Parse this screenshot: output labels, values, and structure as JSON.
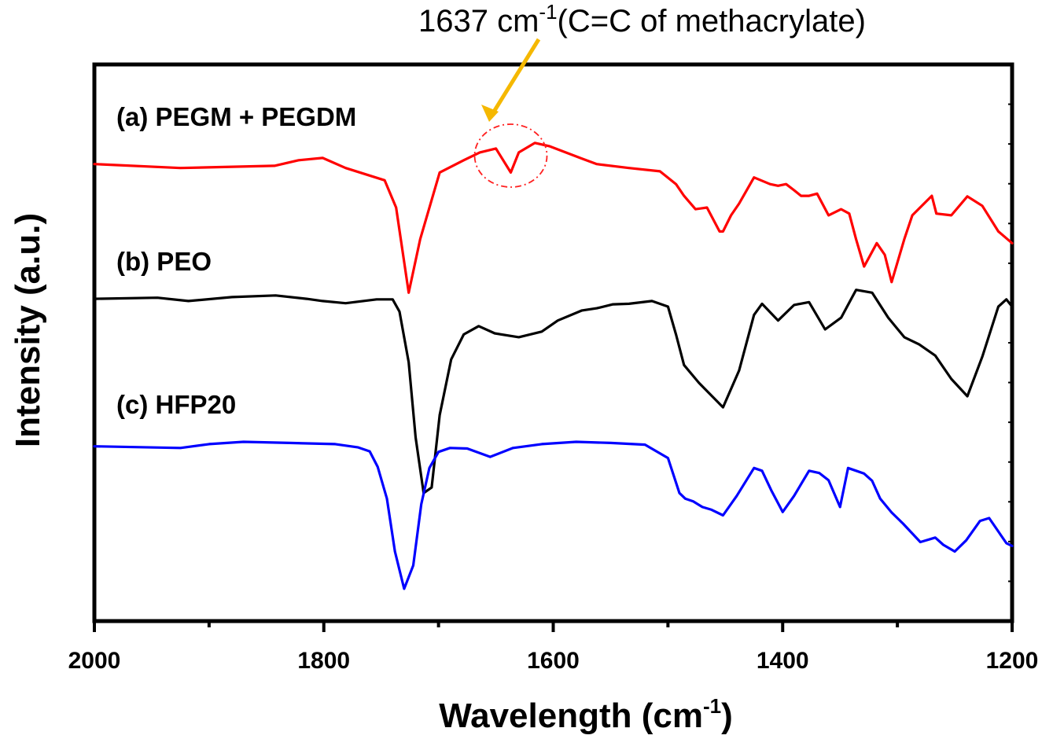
{
  "chart_data": {
    "type": "line",
    "title": "",
    "xlabel": "Wavelength (cm",
    "xlabel_sup": "-1",
    "xlabel_end": ")",
    "ylabel": "Intensity (a.u.)",
    "xlim": [
      2000,
      1200
    ],
    "ylim": [
      0,
      100
    ],
    "x_reversed": true,
    "xticks": [
      2000,
      1800,
      1600,
      1400,
      1200
    ],
    "xtick_labels": [
      "2000",
      "1800",
      "1600",
      "1400",
      "1200"
    ],
    "x_minor_ticks": [
      1900,
      1700,
      1500,
      1300
    ],
    "grid": false,
    "yticks_labeled": false,
    "annotation": {
      "text_main": "1637 cm",
      "text_sup": "-1",
      "text_end": "(C=C of methacrylate)",
      "target_x": 1637,
      "arrow_color": "#f5b800",
      "circle_color": "#ff2020"
    },
    "series": [
      {
        "name": "(a) PEGM + PEGDM",
        "color": "#ff0000",
        "x": [
          2000,
          1925,
          1843,
          1822,
          1801,
          1781,
          1747,
          1737,
          1726,
          1716,
          1699,
          1678,
          1664,
          1650,
          1637,
          1630,
          1616,
          1603,
          1575,
          1562,
          1534,
          1507,
          1493,
          1486,
          1476,
          1466,
          1455,
          1452,
          1445,
          1438,
          1425,
          1411,
          1404,
          1397,
          1390,
          1384,
          1377,
          1370,
          1360,
          1349,
          1342,
          1336,
          1329,
          1318,
          1311,
          1305,
          1294,
          1287,
          1270,
          1266,
          1253,
          1239,
          1226,
          1212,
          1200
        ],
        "y": [
          82.1,
          81.4,
          81.8,
          82.8,
          83.2,
          81.4,
          79.2,
          74.3,
          59.0,
          68.6,
          80.6,
          82.8,
          84.2,
          84.9,
          80.6,
          84.2,
          85.9,
          85.3,
          83.1,
          82.1,
          81.4,
          80.8,
          78.5,
          76.4,
          74.0,
          74.3,
          70.0,
          70.0,
          72.9,
          75.0,
          79.7,
          78.5,
          78.2,
          78.5,
          77.4,
          76.4,
          76.4,
          76.8,
          72.9,
          74.0,
          73.2,
          68.6,
          63.7,
          67.9,
          65.8,
          60.9,
          68.6,
          72.9,
          76.4,
          73.2,
          72.9,
          76.3,
          74.6,
          70.0,
          67.9
        ]
      },
      {
        "name": "(b) PEO",
        "color": "#000000",
        "x": [
          2000,
          1945,
          1918,
          1880,
          1842,
          1815,
          1801,
          1781,
          1754,
          1740,
          1734,
          1726,
          1720,
          1713,
          1706,
          1699,
          1689,
          1678,
          1665,
          1651,
          1630,
          1610,
          1596,
          1575,
          1562,
          1548,
          1534,
          1514,
          1500,
          1493,
          1486,
          1473,
          1452,
          1438,
          1425,
          1418,
          1404,
          1390,
          1377,
          1363,
          1349,
          1336,
          1322,
          1308,
          1294,
          1281,
          1267,
          1253,
          1239,
          1226,
          1212,
          1205,
          1200
        ],
        "y": [
          57.9,
          58.1,
          57.5,
          58.2,
          58.5,
          57.9,
          57.5,
          57.1,
          57.8,
          57.8,
          55.6,
          46.5,
          33.0,
          23.0,
          24.0,
          37.0,
          47.0,
          51.5,
          53.0,
          51.7,
          51.0,
          52.0,
          54.0,
          55.8,
          56.2,
          56.9,
          57.0,
          57.5,
          56.5,
          51.5,
          46.0,
          42.8,
          38.4,
          45.0,
          55.0,
          57.0,
          54.0,
          56.8,
          57.3,
          52.4,
          54.5,
          59.5,
          59.0,
          54.5,
          51.0,
          49.7,
          47.7,
          43.5,
          40.4,
          47.5,
          56.5,
          57.8,
          56.5
        ]
      },
      {
        "name": "(c) HFP20",
        "color": "#0000ff",
        "x": [
          2000,
          1925,
          1900,
          1870,
          1830,
          1790,
          1770,
          1760,
          1753,
          1745,
          1738,
          1730,
          1722,
          1715,
          1708,
          1700,
          1690,
          1675,
          1655,
          1635,
          1610,
          1580,
          1550,
          1520,
          1500,
          1490,
          1485,
          1478,
          1470,
          1462,
          1452,
          1440,
          1425,
          1418,
          1410,
          1400,
          1390,
          1377,
          1368,
          1360,
          1350,
          1343,
          1336,
          1329,
          1322,
          1315,
          1305,
          1295,
          1280,
          1267,
          1260,
          1250,
          1240,
          1228,
          1220,
          1205,
          1200
        ],
        "y": [
          31.4,
          31.1,
          31.8,
          32.2,
          32.0,
          31.8,
          31.2,
          30.5,
          27.7,
          22.0,
          12.5,
          5.8,
          10.0,
          21.0,
          27.5,
          30.4,
          31.1,
          31.0,
          29.5,
          31.1,
          31.8,
          32.2,
          32.0,
          31.7,
          29.3,
          23.0,
          22.0,
          21.5,
          20.5,
          20.0,
          19.0,
          22.5,
          27.5,
          27.0,
          23.5,
          19.6,
          22.5,
          27.0,
          26.6,
          25.3,
          20.5,
          27.5,
          27.0,
          26.5,
          25.2,
          22.0,
          19.5,
          17.5,
          14.2,
          15.0,
          13.7,
          12.5,
          14.5,
          18.0,
          18.5,
          14.0,
          13.5
        ]
      }
    ]
  }
}
